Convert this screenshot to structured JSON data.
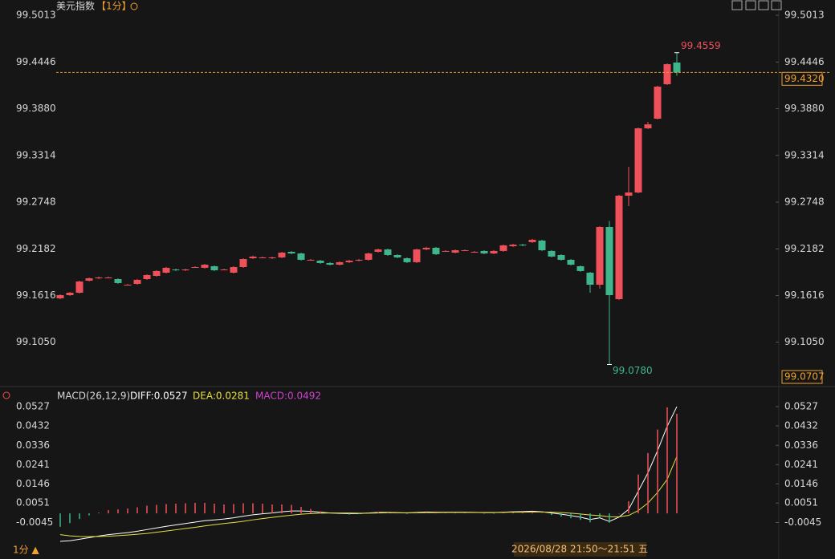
{
  "header": {
    "title": "美元指数",
    "period": "【1分】",
    "footer_period": "1分 ▲",
    "cursor_time": "2026/08/28 21:50～21:51 五"
  },
  "chart_data": [
    {
      "type": "candlestick",
      "ylim": [
        99.0707,
        99.5198
      ],
      "yticks": [
        99.5013,
        99.4446,
        {
          "value": 99.388,
          "label": "99.3880"
        },
        99.3314,
        99.2748,
        99.2182,
        99.1616,
        {
          "value": 99.105,
          "label": "99.1050"
        }
      ],
      "up_color": "#f0505a",
      "down_color": "#3fb68b",
      "last_price": {
        "value": 99.432,
        "label": "99.4320"
      },
      "last_price_color": "#f0a030",
      "max_label": "99.4559",
      "min_label": "99.0780",
      "open": [
        99.1582,
        99.1621,
        99.165,
        99.1796,
        99.1825,
        99.1835,
        99.1815,
        99.1747,
        99.1757,
        99.1815,
        99.1854,
        99.1893,
        99.1932,
        99.1922,
        99.1961,
        99.1952,
        99.1971,
        99.1932,
        99.1893,
        99.1961,
        99.2068,
        99.2078,
        99.2068,
        99.2078,
        99.2146,
        99.2126,
        99.2049,
        99.2039,
        99.201,
        99.199,
        99.202,
        99.2039,
        99.2049,
        99.2146,
        99.2175,
        99.2107,
        99.2068,
        99.202,
        99.2175,
        99.2195,
        99.2156,
        99.2136,
        99.2165,
        99.2146,
        99.2156,
        99.2126,
        99.2156,
        99.2214,
        99.2233,
        99.2263,
        99.2282,
        99.2156,
        99.2107,
        99.2049,
        99.1971,
        99.1893,
        99.1747,
        99.2447,
        99.1572,
        99.2826,
        99.2865,
        99.3643,
        99.3759,
        99.4177,
        99.444
      ],
      "close": [
        99.1621,
        99.165,
        99.1786,
        99.1825,
        99.1835,
        99.1835,
        99.1767,
        99.1747,
        99.1806,
        99.1864,
        99.1913,
        99.1952,
        99.1922,
        99.1932,
        99.1961,
        99.199,
        99.1922,
        99.1932,
        99.1961,
        99.2058,
        99.2088,
        99.2078,
        99.2078,
        99.2136,
        99.2126,
        99.2049,
        99.2049,
        99.201,
        99.199,
        99.202,
        99.2039,
        99.2049,
        99.2126,
        99.2175,
        99.2107,
        99.2078,
        99.202,
        99.2175,
        99.2195,
        99.2117,
        99.2156,
        99.2165,
        99.2165,
        99.2146,
        99.2126,
        99.2156,
        99.2224,
        99.2233,
        99.2224,
        99.2292,
        99.2165,
        99.2088,
        99.2049,
        99.199,
        99.1913,
        99.1747,
        99.2447,
        99.1621,
        99.2826,
        99.2865,
        99.3643,
        99.3691,
        99.4148,
        99.442,
        99.432
      ],
      "high": [
        99.1631,
        99.166,
        99.1796,
        99.1835,
        99.1845,
        99.1845,
        99.1825,
        99.1757,
        99.1816,
        99.1874,
        99.1923,
        99.1962,
        99.1942,
        99.1942,
        99.1971,
        99.2,
        99.1981,
        99.1942,
        99.1971,
        99.2068,
        99.2098,
        99.2088,
        99.2088,
        99.2146,
        99.2156,
        99.2136,
        99.2059,
        99.2049,
        99.202,
        99.203,
        99.2049,
        99.2059,
        99.2136,
        99.2185,
        99.2185,
        99.2117,
        99.2078,
        99.2185,
        99.2205,
        99.2205,
        99.2166,
        99.2175,
        99.2175,
        99.2156,
        99.2166,
        99.2166,
        99.2234,
        99.2243,
        99.2243,
        99.2302,
        99.2292,
        99.2166,
        99.2117,
        99.2059,
        99.1981,
        99.1903,
        99.2457,
        99.252,
        99.2836,
        99.3176,
        99.3653,
        99.372,
        99.4158,
        99.443,
        99.4559
      ],
      "low": [
        99.1572,
        99.1611,
        99.164,
        99.1786,
        99.1815,
        99.1825,
        99.1757,
        99.1737,
        99.1747,
        99.1805,
        99.1844,
        99.1883,
        99.1912,
        99.1912,
        99.1951,
        99.1942,
        99.1912,
        99.1922,
        99.1883,
        99.1951,
        99.2058,
        99.2068,
        99.2058,
        99.2068,
        99.2116,
        99.2039,
        99.2039,
        99.2,
        99.198,
        99.198,
        99.201,
        99.2029,
        99.2039,
        99.2136,
        99.2097,
        99.2068,
        99.201,
        99.201,
        99.2165,
        99.2107,
        99.2146,
        99.2126,
        99.2155,
        99.2136,
        99.2116,
        99.2116,
        99.2146,
        99.2204,
        99.2214,
        99.2253,
        99.2155,
        99.2078,
        99.2039,
        99.198,
        99.1903,
        99.165,
        99.17,
        99.078,
        99.1562,
        99.27,
        99.2855,
        99.3633,
        99.3749,
        99.4167,
        99.428
      ]
    },
    {
      "type": "macd",
      "title": "MACD(26,12,9)",
      "ylim": [
        -0.0158,
        0.0555
      ],
      "yticks": [
        0.0527,
        0.0432,
        0.0336,
        0.0241,
        0.0146,
        0.0051,
        -0.0045
      ],
      "series": [
        {
          "name": "DIFF:0.0527",
          "color": "#ffffff",
          "kind": "line",
          "values": [
            -0.0138,
            -0.0135,
            -0.0128,
            -0.012,
            -0.0112,
            -0.0105,
            -0.01,
            -0.0095,
            -0.0088,
            -0.008,
            -0.0072,
            -0.0064,
            -0.0057,
            -0.005,
            -0.0043,
            -0.0036,
            -0.0032,
            -0.0028,
            -0.0022,
            -0.0014,
            -0.0007,
            -0.0002,
            0.0002,
            0.0008,
            0.0012,
            0.0012,
            0.001,
            0.0006,
            0.0002,
            0,
            -0.0001,
            -0.0001,
            0.0002,
            0.0005,
            0.0005,
            0.0004,
            0.0002,
            0.0005,
            0.0007,
            0.0006,
            0.0006,
            0.0006,
            0.0006,
            0.0005,
            0.0004,
            0.0004,
            0.0006,
            0.0008,
            0.0009,
            0.0011,
            0.0008,
            0.0002,
            -0.0004,
            -0.0011,
            -0.0019,
            -0.003,
            -0.0022,
            -0.004,
            -0.0018,
            0.002,
            0.011,
            0.02,
            0.031,
            0.043,
            0.0527
          ]
        },
        {
          "name": "DEA:0.0281",
          "color": "#e8e040",
          "kind": "line",
          "values": [
            -0.0105,
            -0.0111,
            -0.0114,
            -0.0115,
            -0.0114,
            -0.0113,
            -0.011,
            -0.0107,
            -0.0103,
            -0.0099,
            -0.0093,
            -0.0087,
            -0.0081,
            -0.0075,
            -0.0069,
            -0.0062,
            -0.0056,
            -0.005,
            -0.0045,
            -0.0039,
            -0.0032,
            -0.0026,
            -0.002,
            -0.0014,
            -0.0009,
            -0.0004,
            -0.0001,
            0.0001,
            0.0002,
            0.0002,
            0.0002,
            0.0001,
            0.0001,
            0.0002,
            0.0003,
            0.0003,
            0.0003,
            0.0003,
            0.0004,
            0.0004,
            0.0005,
            0.0005,
            0.0005,
            0.0005,
            0.0005,
            0.0005,
            0.0005,
            0.0006,
            0.0006,
            0.0007,
            0.0007,
            0.0006,
            0.0004,
            0.0001,
            -0.0003,
            -0.0008,
            -0.0011,
            -0.0017,
            -0.0017,
            -0.001,
            0.0014,
            0.0051,
            0.0103,
            0.0168,
            0.0281
          ]
        },
        {
          "name": "MACD:0.0492",
          "color": "#d040d0",
          "kind": "hist",
          "up_color": "#f0505a",
          "down_color": "#3fb68b",
          "values": [
            -0.0066,
            -0.0048,
            -0.0028,
            -0.001,
            0.0004,
            0.0016,
            0.002,
            0.0024,
            0.003,
            0.0038,
            0.0042,
            0.0046,
            0.0048,
            0.005,
            0.0052,
            0.0052,
            0.0048,
            0.0044,
            0.0046,
            0.005,
            0.005,
            0.0048,
            0.0044,
            0.0044,
            0.0042,
            0.0032,
            0.0022,
            0.001,
            0,
            -0.0004,
            -0.0006,
            -0.0004,
            0.0002,
            0.0006,
            0.0004,
            0.0002,
            -0.0002,
            0.0004,
            0.0006,
            0.0004,
            0.0002,
            0.0002,
            0.0002,
            0,
            -0.0002,
            -0.0002,
            0.0002,
            0.0004,
            0.0006,
            0.0008,
            0.0002,
            -0.0008,
            -0.0016,
            -0.0024,
            -0.0032,
            -0.0044,
            -0.0022,
            -0.0046,
            -0.0002,
            0.006,
            0.0192,
            0.0298,
            0.0414,
            0.0524,
            0.0492
          ]
        }
      ]
    }
  ]
}
